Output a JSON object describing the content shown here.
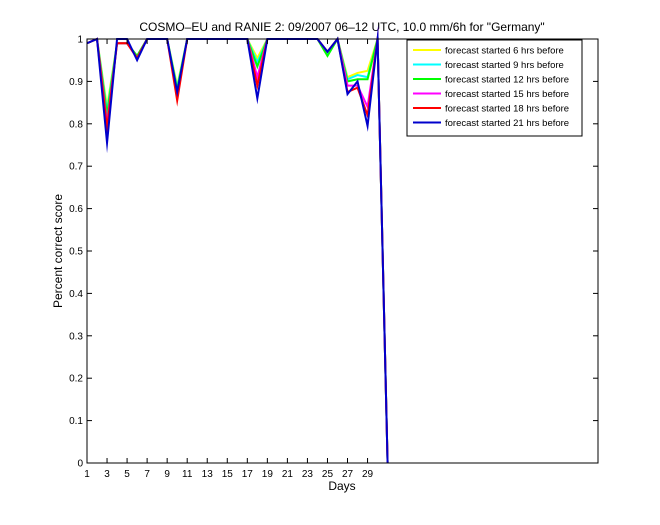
{
  "chart_data": {
    "type": "line",
    "title": "COSMO–EU and RANIE 2: 09/2007 06–12 UTC, 10.0 mm/6h for \"Germany\"",
    "xlabel": "Days",
    "ylabel": "Percent correct score",
    "xlim": [
      1,
      52
    ],
    "ylim": [
      0,
      1
    ],
    "xticks": [
      1,
      3,
      5,
      7,
      9,
      11,
      13,
      15,
      17,
      19,
      21,
      23,
      25,
      27,
      29
    ],
    "yticks": [
      0,
      0.1,
      0.2,
      0.3,
      0.4,
      0.5,
      0.6,
      0.7,
      0.8,
      0.9,
      1
    ],
    "ytick_labels": [
      "0",
      "0.1",
      "0.2",
      "0.3",
      "0.4",
      "0.5",
      "0.6",
      "0.7",
      "0.8",
      "0.9",
      "1"
    ],
    "grid": false,
    "legend_position": "top-right",
    "x": [
      1,
      2,
      3,
      4,
      5,
      6,
      7,
      8,
      9,
      10,
      11,
      12,
      13,
      14,
      15,
      16,
      17,
      18,
      19,
      20,
      21,
      22,
      23,
      24,
      25,
      26,
      27,
      28,
      29,
      30,
      31
    ],
    "series": [
      {
        "name": "forecast started 6 hrs before",
        "color": "#ffff00",
        "values": [
          0.99,
          1.0,
          0.84,
          0.99,
          0.99,
          0.96,
          1.0,
          1.0,
          1.0,
          0.89,
          1.0,
          1.0,
          1.0,
          1.0,
          1.0,
          1.0,
          1.0,
          0.955,
          1.0,
          1.0,
          1.0,
          1.0,
          1.0,
          1.0,
          0.97,
          1.0,
          0.91,
          0.92,
          0.925,
          1.0,
          0.0
        ]
      },
      {
        "name": "forecast started 9 hrs before",
        "color": "#00ffff",
        "values": [
          0.99,
          1.0,
          0.83,
          0.99,
          0.99,
          0.96,
          1.0,
          1.0,
          1.0,
          0.885,
          1.0,
          1.0,
          1.0,
          1.0,
          1.0,
          1.0,
          1.0,
          0.945,
          1.0,
          1.0,
          1.0,
          1.0,
          1.0,
          1.0,
          0.965,
          1.0,
          0.905,
          0.915,
          0.91,
          1.0,
          0.0
        ]
      },
      {
        "name": "forecast started 12 hrs before",
        "color": "#00ff00",
        "values": [
          0.99,
          1.0,
          0.82,
          0.99,
          0.99,
          0.96,
          1.0,
          1.0,
          1.0,
          0.88,
          1.0,
          1.0,
          1.0,
          1.0,
          1.0,
          1.0,
          1.0,
          0.935,
          1.0,
          1.0,
          1.0,
          1.0,
          1.0,
          1.0,
          0.96,
          1.0,
          0.9,
          0.905,
          0.905,
          1.0,
          0.0
        ]
      },
      {
        "name": "forecast started 15 hrs before",
        "color": "#ff00ff",
        "values": [
          0.99,
          1.0,
          0.8,
          0.99,
          0.99,
          0.955,
          1.0,
          1.0,
          1.0,
          0.87,
          1.0,
          1.0,
          1.0,
          1.0,
          1.0,
          1.0,
          1.0,
          0.91,
          1.0,
          1.0,
          1.0,
          1.0,
          1.0,
          1.0,
          0.97,
          1.0,
          0.89,
          0.89,
          0.84,
          1.0,
          0.0
        ]
      },
      {
        "name": "forecast started 18 hrs before",
        "color": "#ff0000",
        "values": [
          0.99,
          1.0,
          0.79,
          0.99,
          0.99,
          0.955,
          1.0,
          1.0,
          1.0,
          0.855,
          1.0,
          1.0,
          1.0,
          1.0,
          1.0,
          1.0,
          1.0,
          0.89,
          1.0,
          1.0,
          1.0,
          1.0,
          1.0,
          1.0,
          0.97,
          1.0,
          0.875,
          0.885,
          0.82,
          1.0,
          0.0
        ]
      },
      {
        "name": "forecast started 21 hrs before",
        "color": "#0000cc",
        "values": [
          0.99,
          1.0,
          0.755,
          1.0,
          1.0,
          0.95,
          1.0,
          1.0,
          1.0,
          0.875,
          1.0,
          1.0,
          1.0,
          1.0,
          1.0,
          1.0,
          1.0,
          0.86,
          1.0,
          1.0,
          1.0,
          1.0,
          1.0,
          1.0,
          0.97,
          1.0,
          0.87,
          0.9,
          0.795,
          1.0,
          0.0
        ]
      }
    ]
  }
}
